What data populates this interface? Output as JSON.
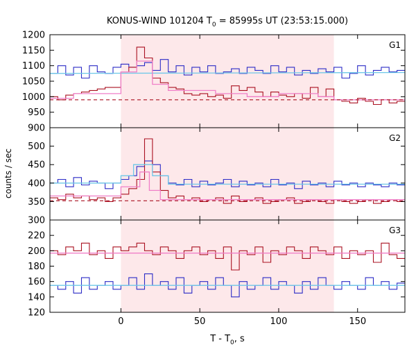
{
  "title_main": "KONUS-WIND 101204 T",
  "title_sub": "0",
  "title_rest": " = 85995s UT (23:53:15.000)",
  "ylabel": "counts / sec",
  "xlabel_main": "T - T",
  "xlabel_sub": "0",
  "xlabel_rest": ", s",
  "colors": {
    "highlight": "#fde8ea",
    "blue_step": "#2b2bc6",
    "red_step": "#aa1020",
    "cyan_fit": "#6ec8e8",
    "pink_fit": "#f07fc8",
    "red_bg": "#aa1020"
  },
  "chart_data": [
    {
      "type": "line",
      "panel_label": "G1",
      "xlim": [
        -45,
        180
      ],
      "ylim": [
        900,
        1200
      ],
      "yticks": [
        900,
        950,
        1000,
        1050,
        1100,
        1150,
        1200
      ],
      "xticks": [
        0,
        50,
        100,
        150
      ],
      "highlight_x": [
        0,
        135
      ],
      "series": [
        {
          "role": "blue_step",
          "x": [
            -45,
            -40,
            -35,
            -30,
            -25,
            -20,
            -15,
            -10,
            -5,
            0,
            5,
            10,
            15,
            20,
            25,
            30,
            35,
            40,
            45,
            50,
            55,
            60,
            65,
            70,
            75,
            80,
            85,
            90,
            95,
            100,
            105,
            110,
            115,
            120,
            125,
            130,
            135,
            140,
            145,
            150,
            155,
            160,
            165,
            170,
            175
          ],
          "values": [
            1075,
            1100,
            1070,
            1095,
            1060,
            1100,
            1080,
            1075,
            1095,
            1105,
            1095,
            1100,
            1110,
            1085,
            1120,
            1080,
            1100,
            1070,
            1095,
            1080,
            1100,
            1075,
            1080,
            1090,
            1075,
            1095,
            1085,
            1075,
            1100,
            1080,
            1095,
            1070,
            1085,
            1075,
            1090,
            1080,
            1095,
            1060,
            1075,
            1100,
            1070,
            1085,
            1095,
            1080,
            1085
          ]
        },
        {
          "role": "red_step",
          "x": [
            -45,
            -40,
            -35,
            -30,
            -25,
            -20,
            -15,
            -10,
            -5,
            0,
            5,
            10,
            15,
            20,
            25,
            30,
            35,
            40,
            45,
            50,
            55,
            60,
            65,
            70,
            75,
            80,
            85,
            90,
            95,
            100,
            105,
            110,
            115,
            120,
            125,
            130,
            135,
            140,
            145,
            150,
            155,
            160,
            165,
            170,
            175
          ],
          "values": [
            1000,
            990,
            1005,
            1010,
            1015,
            1020,
            1025,
            1030,
            1030,
            1080,
            1095,
            1160,
            1125,
            1060,
            1045,
            1030,
            1025,
            1010,
            1005,
            1010,
            1000,
            1005,
            995,
            1035,
            1020,
            1030,
            1015,
            1000,
            1015,
            1005,
            1000,
            1010,
            995,
            1030,
            1000,
            1025,
            990,
            985,
            980,
            995,
            985,
            975,
            990,
            980,
            985
          ]
        },
        {
          "role": "cyan_fit",
          "x": [
            -45,
            180
          ],
          "values": [
            1075,
            1078
          ]
        },
        {
          "role": "pink_fit",
          "x": [
            -45,
            -30,
            -30,
            0,
            0,
            10,
            10,
            20,
            20,
            30,
            30,
            60,
            60,
            80,
            80,
            100,
            100,
            125,
            125,
            135,
            135,
            180
          ],
          "values": [
            995,
            995,
            1010,
            1010,
            1080,
            1080,
            1115,
            1115,
            1040,
            1040,
            1020,
            1020,
            1010,
            1010,
            1000,
            1000,
            1010,
            1010,
            1000,
            1000,
            990,
            990
          ]
        },
        {
          "role": "red_bg",
          "x": [
            -45,
            180
          ],
          "values": [
            990,
            990
          ]
        }
      ]
    },
    {
      "type": "line",
      "panel_label": "G2",
      "xlim": [
        -45,
        180
      ],
      "ylim": [
        300,
        550
      ],
      "yticks": [
        300,
        350,
        400,
        450,
        500
      ],
      "xticks": [
        0,
        50,
        100,
        150
      ],
      "highlight_x": [
        0,
        135
      ],
      "series": [
        {
          "role": "blue_step",
          "x": [
            -45,
            -40,
            -35,
            -30,
            -25,
            -20,
            -15,
            -10,
            -5,
            0,
            5,
            10,
            15,
            20,
            25,
            30,
            35,
            40,
            45,
            50,
            55,
            60,
            65,
            70,
            75,
            80,
            85,
            90,
            95,
            100,
            105,
            110,
            115,
            120,
            125,
            130,
            135,
            140,
            145,
            150,
            155,
            160,
            165,
            170,
            175
          ],
          "values": [
            400,
            410,
            390,
            415,
            395,
            405,
            400,
            385,
            400,
            410,
            420,
            445,
            460,
            450,
            420,
            400,
            395,
            410,
            390,
            405,
            395,
            400,
            410,
            390,
            405,
            395,
            400,
            390,
            410,
            395,
            400,
            385,
            405,
            395,
            400,
            390,
            405,
            395,
            400,
            390,
            400,
            395,
            390,
            400,
            395
          ]
        },
        {
          "role": "red_step",
          "x": [
            -45,
            -40,
            -35,
            -30,
            -25,
            -20,
            -15,
            -10,
            -5,
            0,
            5,
            10,
            15,
            20,
            25,
            30,
            35,
            40,
            45,
            50,
            55,
            60,
            65,
            70,
            75,
            80,
            85,
            90,
            95,
            100,
            105,
            110,
            115,
            120,
            125,
            130,
            135,
            140,
            145,
            150,
            155,
            160,
            165,
            170,
            175
          ],
          "values": [
            360,
            355,
            370,
            360,
            365,
            355,
            360,
            350,
            360,
            370,
            385,
            410,
            520,
            430,
            380,
            360,
            365,
            355,
            360,
            350,
            355,
            360,
            345,
            365,
            350,
            355,
            360,
            345,
            350,
            355,
            360,
            345,
            350,
            355,
            350,
            345,
            355,
            350,
            345,
            350,
            355,
            345,
            350,
            355,
            350
          ]
        },
        {
          "role": "cyan_fit",
          "x": [
            -45,
            0,
            0,
            8,
            8,
            20,
            20,
            30,
            30,
            180
          ],
          "values": [
            400,
            400,
            420,
            420,
            450,
            450,
            420,
            420,
            397,
            397
          ]
        },
        {
          "role": "pink_fit",
          "x": [
            -45,
            0,
            0,
            12,
            12,
            18,
            18,
            25,
            25,
            180
          ],
          "values": [
            365,
            365,
            390,
            390,
            430,
            430,
            380,
            380,
            355,
            355
          ]
        },
        {
          "role": "red_bg",
          "x": [
            -45,
            180
          ],
          "values": [
            352,
            352
          ]
        }
      ]
    },
    {
      "type": "line",
      "panel_label": "G3",
      "xlim": [
        -45,
        180
      ],
      "ylim": [
        120,
        240
      ],
      "yticks": [
        120,
        140,
        160,
        180,
        200,
        220
      ],
      "xticks": [
        0,
        50,
        100,
        150
      ],
      "highlight_x": [
        0,
        135
      ],
      "series": [
        {
          "role": "red_step",
          "x": [
            -45,
            -40,
            -35,
            -30,
            -25,
            -20,
            -15,
            -10,
            -5,
            0,
            5,
            10,
            15,
            20,
            25,
            30,
            35,
            40,
            45,
            50,
            55,
            60,
            65,
            70,
            75,
            80,
            85,
            90,
            95,
            100,
            105,
            110,
            115,
            120,
            125,
            130,
            135,
            140,
            145,
            150,
            155,
            160,
            165,
            170,
            175
          ],
          "values": [
            200,
            195,
            205,
            200,
            210,
            195,
            200,
            190,
            205,
            200,
            205,
            210,
            200,
            195,
            205,
            200,
            190,
            200,
            205,
            195,
            200,
            190,
            205,
            175,
            200,
            195,
            205,
            185,
            200,
            195,
            205,
            200,
            190,
            205,
            200,
            195,
            205,
            190,
            200,
            195,
            200,
            185,
            210,
            195,
            190
          ]
        },
        {
          "role": "blue_step",
          "x": [
            -45,
            -40,
            -35,
            -30,
            -25,
            -20,
            -15,
            -10,
            -5,
            0,
            5,
            10,
            15,
            20,
            25,
            30,
            35,
            40,
            45,
            50,
            55,
            60,
            65,
            70,
            75,
            80,
            85,
            90,
            95,
            100,
            105,
            110,
            115,
            120,
            125,
            130,
            135,
            140,
            145,
            150,
            155,
            160,
            165,
            170,
            175
          ],
          "values": [
            155,
            150,
            160,
            145,
            165,
            150,
            155,
            160,
            150,
            155,
            165,
            150,
            170,
            155,
            160,
            150,
            165,
            145,
            155,
            160,
            150,
            165,
            155,
            140,
            160,
            150,
            155,
            165,
            150,
            160,
            155,
            145,
            160,
            150,
            165,
            155,
            150,
            160,
            155,
            150,
            165,
            155,
            160,
            150,
            158
          ]
        },
        {
          "role": "pink_fit",
          "x": [
            -45,
            180
          ],
          "values": [
            197,
            197
          ]
        },
        {
          "role": "cyan_fit",
          "x": [
            -45,
            180
          ],
          "values": [
            155,
            155
          ]
        }
      ]
    }
  ]
}
